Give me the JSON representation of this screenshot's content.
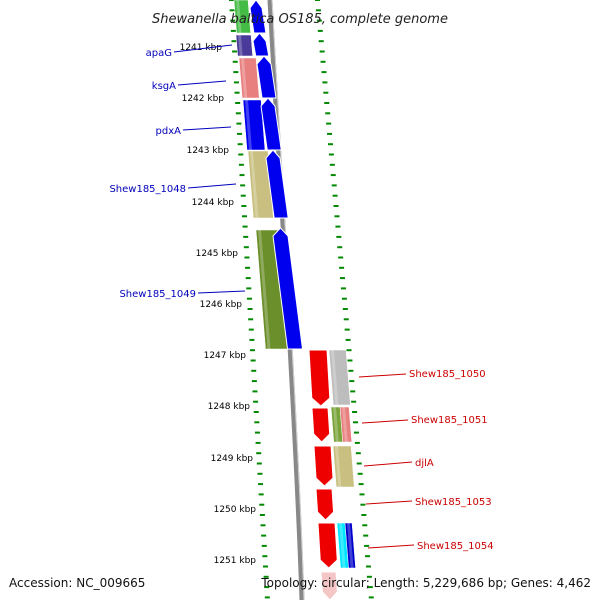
{
  "title": "Shewanella baltica OS185, complete genome",
  "footer": {
    "accession": "Accession: NC_009665",
    "summary": "Topology: circular; Length: 5,229,686 bp; Genes: 4,462"
  },
  "kbp_labels": [
    "1241 kbp",
    "1242 kbp",
    "1243 kbp",
    "1244 kbp",
    "1245 kbp",
    "1246 kbp",
    "1247 kbp",
    "1248 kbp",
    "1249 kbp",
    "1250 kbp",
    "1251 kbp"
  ],
  "left_genes": [
    "apaG",
    "ksgA",
    "pdxA",
    "Shew185_1048",
    "Shew185_1049"
  ],
  "right_genes": [
    "Shew185_1050",
    "Shew185_1051",
    "djlA",
    "Shew185_1053",
    "Shew185_1054"
  ],
  "colors": {
    "left_label": "#0000bb",
    "right_label": "#cc0000",
    "tick": "#008800",
    "backbone": "#888888",
    "forward_strand": "#0000ee",
    "reverse_strand": "#ee0000"
  },
  "features": [
    {
      "name": "green-block",
      "color": "#44bb44"
    },
    {
      "name": "apaG-block",
      "color": "#4a3a9a"
    },
    {
      "name": "ksgA-block",
      "color": "#e98080"
    },
    {
      "name": "pdxA-block",
      "color": "#0000ee"
    },
    {
      "name": "shew185-1048-block",
      "color": "#c8bf80"
    },
    {
      "name": "shew185-1049-block",
      "color": "#6b8f2a"
    },
    {
      "name": "shew185-1050-cog",
      "color": "#bdbdbd"
    },
    {
      "name": "shew185-1051-cog",
      "color": "#7aa33a"
    },
    {
      "name": "shew185-1051-cog-b",
      "color": "#e98080"
    },
    {
      "name": "djlA-cog",
      "color": "#c8bf80"
    },
    {
      "name": "shew185-1054-cog-a",
      "color": "#00e5ff"
    },
    {
      "name": "shew185-1054-cog-b",
      "color": "#0000cc"
    }
  ]
}
